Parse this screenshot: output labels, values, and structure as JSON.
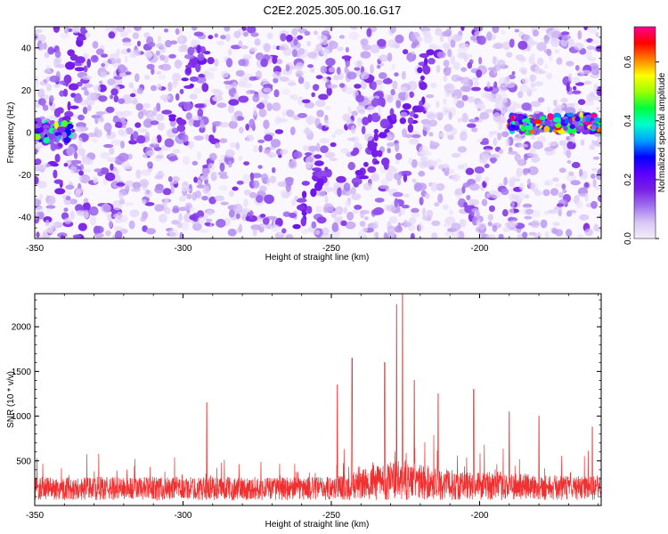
{
  "title": "C2E2.2025.305.00.16.G17",
  "chart_data": [
    {
      "type": "heatmap",
      "xlabel": "Height of straight line (km)",
      "ylabel": "Frequency (Hz)",
      "xlim": [
        -350,
        -159
      ],
      "ylim": [
        -50,
        50
      ],
      "xticks": [
        "-350",
        "-300",
        "-250",
        "-200"
      ],
      "yticks": [
        "40",
        "20",
        "0",
        "-20",
        "-40"
      ],
      "colorbar": {
        "label": "Normalized spectral amplitude",
        "range": [
          0,
          0.72
        ],
        "ticks": [
          "0.0",
          "0.2",
          "0.4",
          "0.6"
        ],
        "colors": [
          "#f4eefc",
          "#d9c6f5",
          "#a070ee",
          "#7a1fe6",
          "#5a00ff",
          "#0000ff",
          "#00a0ff",
          "#00ffcc",
          "#00ff3c",
          "#9cff00",
          "#ffff00",
          "#ff8000",
          "#ff0000",
          "#ff0090"
        ]
      },
      "features": [
        {
          "name": "band",
          "x": [
            -350,
            -338
          ],
          "freq": [
            -2,
            3
          ],
          "peak": 0.45
        },
        {
          "name": "band",
          "x": [
            -190,
            -159
          ],
          "freq": [
            2,
            6
          ],
          "peak": 0.62
        }
      ]
    },
    {
      "type": "line",
      "xlabel": "Height of straight line (km)",
      "ylabel": "SNR (10 * v/v)",
      "xlim": [
        -350,
        -159
      ],
      "ylim": [
        0,
        2370
      ],
      "xticks": [
        "-350",
        "-300",
        "-250",
        "-200"
      ],
      "yticks": [
        "500",
        "1000",
        "1500",
        "2000"
      ],
      "color": "#f03030",
      "notable_peaks": [
        {
          "x": -292,
          "y": 1150
        },
        {
          "x": -248,
          "y": 1350
        },
        {
          "x": -243,
          "y": 1650
        },
        {
          "x": -232,
          "y": 1600
        },
        {
          "x": -228,
          "y": 2250
        },
        {
          "x": -226,
          "y": 2370
        },
        {
          "x": -222,
          "y": 1400
        },
        {
          "x": -214,
          "y": 1250
        },
        {
          "x": -202,
          "y": 1300
        },
        {
          "x": -190,
          "y": 1050
        },
        {
          "x": -180,
          "y": 1000
        },
        {
          "x": -162,
          "y": 880
        }
      ]
    }
  ]
}
